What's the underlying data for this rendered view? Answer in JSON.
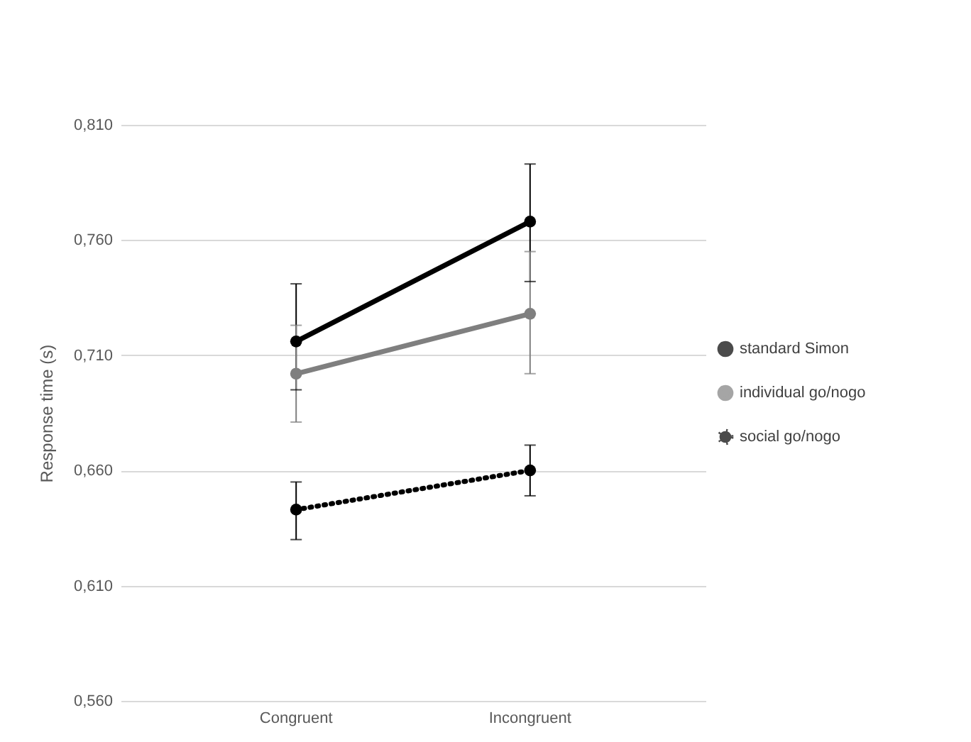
{
  "chart_data": {
    "type": "line",
    "ylabel": "Response time (s)",
    "categories": [
      "Congruent",
      "Incongruent"
    ],
    "series": [
      {
        "name": "standard Simon",
        "color": "#000000",
        "line_style": "solid",
        "values": [
          0.716,
          0.768
        ],
        "errors": [
          [
            0.695,
            0.741
          ],
          [
            0.742,
            0.793
          ]
        ]
      },
      {
        "name": "individual go/nogo",
        "color": "#7f7f7f",
        "line_style": "solid",
        "values": [
          0.702,
          0.728
        ],
        "errors": [
          [
            0.681,
            0.723
          ],
          [
            0.702,
            0.755
          ]
        ]
      },
      {
        "name": "social go/nogo",
        "color": "#000000",
        "line_style": "dotted",
        "values": [
          0.643,
          0.66
        ],
        "errors": [
          [
            0.63,
            0.655
          ],
          [
            0.649,
            0.671
          ]
        ]
      }
    ],
    "ylim": [
      0.56,
      0.81
    ],
    "yticks": [
      {
        "value": 0.56,
        "label": "0,560"
      },
      {
        "value": 0.61,
        "label": "0,610"
      },
      {
        "value": 0.66,
        "label": "0,660"
      },
      {
        "value": 0.71,
        "label": "0,710"
      },
      {
        "value": 0.76,
        "label": "0,760"
      },
      {
        "value": 0.81,
        "label": "0,810"
      }
    ],
    "grid": "y",
    "legend": "right",
    "marker": "circle"
  }
}
